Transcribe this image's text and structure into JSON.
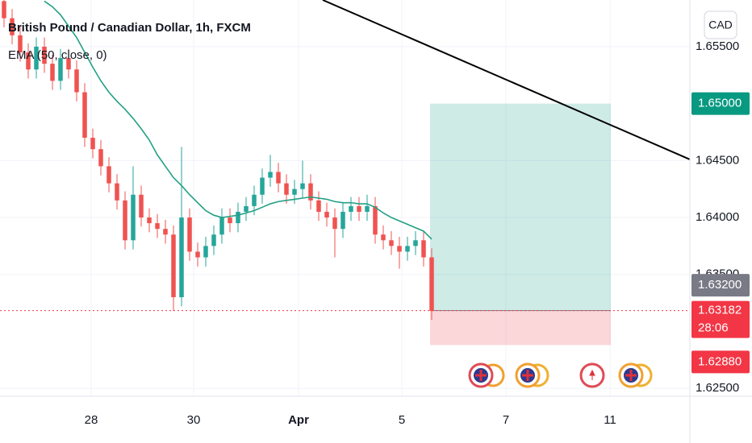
{
  "chart_data": {
    "type": "candlestick",
    "title": "British Pound / Canadian Dollar, 1h, FXCM",
    "indicator": "EMA (50, close, 0)",
    "currency": "CAD",
    "countdown": "28:06",
    "up_color": "#26a69a",
    "down_color": "#ef5350",
    "ema_color": "#22a083",
    "xlim": [
      -0.5,
      85
    ],
    "ylim": [
      1.62444,
      1.6591
    ],
    "xticks": [
      {
        "value": 10.8,
        "label": "28"
      },
      {
        "value": 23.5,
        "label": "30"
      },
      {
        "value": 36.5,
        "label": "Apr"
      },
      {
        "value": 49.3,
        "label": "5"
      },
      {
        "value": 62.2,
        "label": "7"
      },
      {
        "value": 75.1,
        "label": "11"
      }
    ],
    "yticks": [
      {
        "value": 1.655,
        "label": "1.65500"
      },
      {
        "value": 1.645,
        "label": "1.64500"
      },
      {
        "value": 1.64,
        "label": "1.64000"
      },
      {
        "value": 1.635,
        "label": "1.63500"
      },
      {
        "value": 1.625,
        "label": "1.62500"
      }
    ],
    "grid": true,
    "candles": [
      [
        1.659,
        1.6598,
        1.6567,
        1.6575
      ],
      [
        1.6575,
        1.6583,
        1.6552,
        1.656
      ],
      [
        1.656,
        1.6568,
        1.6537,
        1.6545
      ],
      [
        1.6545,
        1.6553,
        1.6522,
        1.653
      ],
      [
        1.653,
        1.6558,
        1.6522,
        1.655
      ],
      [
        1.655,
        1.6558,
        1.6527,
        1.6535
      ],
      [
        1.6535,
        1.6543,
        1.6512,
        1.652
      ],
      [
        1.652,
        1.6548,
        1.6512,
        1.654
      ],
      [
        1.654,
        1.6548,
        1.6522,
        1.653
      ],
      [
        1.653,
        1.6538,
        1.6502,
        1.651
      ],
      [
        1.651,
        1.6518,
        1.6462,
        1.647
      ],
      [
        1.647,
        1.6478,
        1.6452,
        1.646
      ],
      [
        1.646,
        1.6468,
        1.6437,
        1.6445
      ],
      [
        1.6445,
        1.6453,
        1.6422,
        1.643
      ],
      [
        1.643,
        1.6438,
        1.6407,
        1.6415
      ],
      [
        1.6415,
        1.6423,
        1.6372,
        1.638
      ],
      [
        1.638,
        1.6445,
        1.6372,
        1.642
      ],
      [
        1.642,
        1.6428,
        1.6392,
        1.64
      ],
      [
        1.64,
        1.6408,
        1.6387,
        1.6395
      ],
      [
        1.6395,
        1.6403,
        1.6382,
        1.639
      ],
      [
        1.639,
        1.6398,
        1.6377,
        1.6385
      ],
      [
        1.6385,
        1.6393,
        1.6318,
        1.633
      ],
      [
        1.633,
        1.6462,
        1.6322,
        1.64
      ],
      [
        1.64,
        1.6408,
        1.6362,
        1.637
      ],
      [
        1.637,
        1.6378,
        1.6357,
        1.6365
      ],
      [
        1.6365,
        1.6383,
        1.6357,
        1.6375
      ],
      [
        1.6375,
        1.6393,
        1.6367,
        1.6385
      ],
      [
        1.6385,
        1.6408,
        1.6377,
        1.64
      ],
      [
        1.64,
        1.6408,
        1.6387,
        1.6395
      ],
      [
        1.6395,
        1.6413,
        1.6387,
        1.6405
      ],
      [
        1.6405,
        1.6418,
        1.6397,
        1.641
      ],
      [
        1.641,
        1.6428,
        1.6402,
        1.642
      ],
      [
        1.642,
        1.6443,
        1.6412,
        1.6435
      ],
      [
        1.6435,
        1.6455,
        1.6427,
        1.644
      ],
      [
        1.644,
        1.6448,
        1.6422,
        1.643
      ],
      [
        1.643,
        1.6438,
        1.6412,
        1.642
      ],
      [
        1.642,
        1.6433,
        1.6412,
        1.6425
      ],
      [
        1.6425,
        1.645,
        1.6417,
        1.643
      ],
      [
        1.643,
        1.6438,
        1.6407,
        1.6415
      ],
      [
        1.6415,
        1.6423,
        1.6397,
        1.6405
      ],
      [
        1.6405,
        1.6413,
        1.6392,
        1.64
      ],
      [
        1.64,
        1.6408,
        1.6365,
        1.639
      ],
      [
        1.639,
        1.6413,
        1.6382,
        1.6405
      ],
      [
        1.6405,
        1.6418,
        1.6397,
        1.641
      ],
      [
        1.641,
        1.6418,
        1.6397,
        1.6405
      ],
      [
        1.6405,
        1.642,
        1.6397,
        1.641
      ],
      [
        1.641,
        1.6418,
        1.6377,
        1.6385
      ],
      [
        1.6385,
        1.6393,
        1.6372,
        1.638
      ],
      [
        1.638,
        1.6388,
        1.6367,
        1.6375
      ],
      [
        1.6375,
        1.6383,
        1.6355,
        1.637
      ],
      [
        1.637,
        1.6383,
        1.6362,
        1.6375
      ],
      [
        1.6375,
        1.6388,
        1.6367,
        1.638
      ],
      [
        1.638,
        1.6388,
        1.6357,
        1.6365
      ],
      [
        1.6365,
        1.6373,
        1.631,
        1.6318
      ]
    ],
    "ema": [
      null,
      null,
      null,
      null,
      null,
      1.659,
      1.6585,
      1.6578,
      1.6568,
      1.6558,
      1.6545,
      1.6532,
      1.652,
      1.651,
      1.6502,
      1.6495,
      1.6487,
      1.6478,
      1.6468,
      1.6455,
      1.6445,
      1.6435,
      1.6428,
      1.642,
      1.6413,
      1.6406,
      1.6402,
      1.64,
      1.6401,
      1.6402,
      1.6404,
      1.6406,
      1.6409,
      1.6412,
      1.6414,
      1.6415,
      1.6416,
      1.6417,
      1.6418,
      1.6417,
      1.6416,
      1.6414,
      1.6413,
      1.6413,
      1.6412,
      1.6412,
      1.6409,
      1.6404,
      1.64,
      1.6397,
      1.6394,
      1.6391,
      1.6388,
      1.6381
    ],
    "position": {
      "x": [
        52.8,
        75.2
      ],
      "entry": 1.63182,
      "target": {
        "value": 1.65,
        "label": "1.65000"
      },
      "stop": {
        "value": 1.6288,
        "label": "1.62880"
      }
    },
    "last_price": {
      "value": 1.63182,
      "label": "1.63182"
    },
    "marker_price": {
      "value": 1.632,
      "label": "1.63200"
    },
    "trendline": {
      "x": [
        39.5,
        85
      ],
      "y": [
        1.6591,
        1.6451
      ]
    }
  }
}
